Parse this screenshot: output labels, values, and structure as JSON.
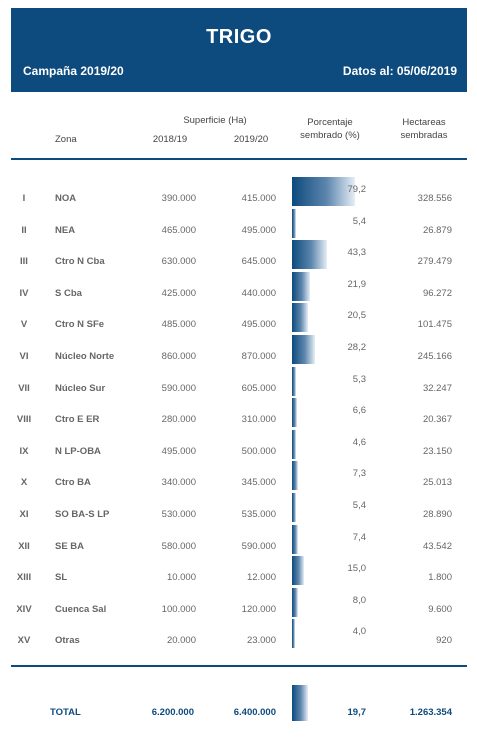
{
  "header": {
    "title": "TRIGO",
    "campaign": "Campaña 2019/20",
    "date": "Datos al: 05/06/2019"
  },
  "columns": {
    "superficie": "Superficie (Ha)",
    "zona": "Zona",
    "year1": "2018/19",
    "year2": "2019/20",
    "pct_line1": "Porcentaje",
    "pct_line2": "sembrado (%)",
    "ha_line1": "Hectareas",
    "ha_line2": "sembradas"
  },
  "rows": [
    {
      "num": "I",
      "zona": "NOA",
      "y1": "390.000",
      "y2": "415.000",
      "pct": "79,2",
      "pct_value": 79.2,
      "ha": "328.556"
    },
    {
      "num": "II",
      "zona": "NEA",
      "y1": "465.000",
      "y2": "495.000",
      "pct": "5,4",
      "pct_value": 5.4,
      "ha": "26.879"
    },
    {
      "num": "III",
      "zona": "Ctro N Cba",
      "y1": "630.000",
      "y2": "645.000",
      "pct": "43,3",
      "pct_value": 43.3,
      "ha": "279.479"
    },
    {
      "num": "IV",
      "zona": "S Cba",
      "y1": "425.000",
      "y2": "440.000",
      "pct": "21,9",
      "pct_value": 21.9,
      "ha": "96.272"
    },
    {
      "num": "V",
      "zona": "Ctro N SFe",
      "y1": "485.000",
      "y2": "495.000",
      "pct": "20,5",
      "pct_value": 20.5,
      "ha": "101.475"
    },
    {
      "num": "VI",
      "zona": "Núcleo Norte",
      "y1": "860.000",
      "y2": "870.000",
      "pct": "28,2",
      "pct_value": 28.2,
      "ha": "245.166"
    },
    {
      "num": "VII",
      "zona": "Núcleo Sur",
      "y1": "590.000",
      "y2": "605.000",
      "pct": "5,3",
      "pct_value": 5.3,
      "ha": "32.247"
    },
    {
      "num": "VIII",
      "zona": "Ctro E ER",
      "y1": "280.000",
      "y2": "310.000",
      "pct": "6,6",
      "pct_value": 6.6,
      "ha": "20.367"
    },
    {
      "num": "IX",
      "zona": "N LP-OBA",
      "y1": "495.000",
      "y2": "500.000",
      "pct": "4,6",
      "pct_value": 4.6,
      "ha": "23.150"
    },
    {
      "num": "X",
      "zona": "Ctro BA",
      "y1": "340.000",
      "y2": "345.000",
      "pct": "7,3",
      "pct_value": 7.3,
      "ha": "25.013"
    },
    {
      "num": "XI",
      "zona": "SO BA-S LP",
      "y1": "530.000",
      "y2": "535.000",
      "pct": "5,4",
      "pct_value": 5.4,
      "ha": "28.890"
    },
    {
      "num": "XII",
      "zona": "SE BA",
      "y1": "580.000",
      "y2": "590.000",
      "pct": "7,4",
      "pct_value": 7.4,
      "ha": "43.542"
    },
    {
      "num": "XIII",
      "zona": "SL",
      "y1": "10.000",
      "y2": "12.000",
      "pct": "15,0",
      "pct_value": 15.0,
      "ha": "1.800"
    },
    {
      "num": "XIV",
      "zona": "Cuenca Sal",
      "y1": "100.000",
      "y2": "120.000",
      "pct": "8,0",
      "pct_value": 8.0,
      "ha": "9.600"
    },
    {
      "num": "XV",
      "zona": "Otras",
      "y1": "20.000",
      "y2": "23.000",
      "pct": "4,0",
      "pct_value": 4.0,
      "ha": "920"
    }
  ],
  "total": {
    "label": "TOTAL",
    "y1": "6.200.000",
    "y2": "6.400.000",
    "pct": "19,7",
    "pct_value": 19.7,
    "ha": "1.263.354"
  }
}
